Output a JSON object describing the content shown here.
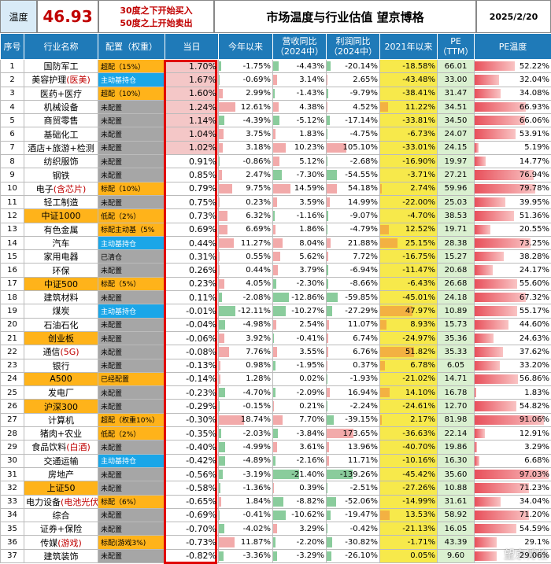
{
  "header": {
    "temp_label": "温度",
    "temp_value": "46.93",
    "rule1": "30度之下开始买入",
    "rule2": "50度之上开始卖出",
    "title": "市场温度与行业估值 望京博格",
    "date": "2025/2/20"
  },
  "columns": [
    "序号",
    "行业名称",
    "配置（权重）",
    "当日",
    "今年以来",
    "营收同比（2024中）",
    "利润同比（2024中）",
    "2021年以来",
    "PE（TTM）",
    "PE温度"
  ],
  "colors": {
    "orange": "#ffb31a",
    "blue": "#1aa6e8",
    "gray": "#a6a6a6",
    "yellow": "#f7e94b",
    "red": "#c00000",
    "green": "#007a33"
  },
  "rows": [
    {
      "n": "1",
      "name": "国防军工",
      "nameH": "",
      "cfg": "超配（15%）",
      "cc": "orange",
      "day": "1.70%",
      "ytd": "-1.75%",
      "rev": "-4.43%",
      "prof": "-20.14%",
      "s21": "-18.58%",
      "pe": "66.01",
      "pt": "52.22%"
    },
    {
      "n": "2",
      "name": "美容护理",
      "nameH": "(医美)",
      "cfg": "主动基持仓",
      "cc": "blue",
      "day": "1.67%",
      "ytd": "-0.69%",
      "rev": "3.14%",
      "prof": "2.65%",
      "s21": "-43.48%",
      "pe": "33.00",
      "pt": "32.04%"
    },
    {
      "n": "3",
      "name": "医药+医疗",
      "nameH": "",
      "cfg": "超配（10%）",
      "cc": "orange",
      "day": "1.60%",
      "ytd": "2.99%",
      "rev": "-1.43%",
      "prof": "-9.79%",
      "s21": "-38.41%",
      "pe": "31.47",
      "pt": "34.08%"
    },
    {
      "n": "4",
      "name": "机械设备",
      "nameH": "",
      "cfg": "未配置",
      "cc": "gray",
      "day": "1.24%",
      "ytd": "12.61%",
      "rev": "4.38%",
      "prof": "4.52%",
      "s21": "11.22%",
      "pe": "34.51",
      "pt": "66.93%"
    },
    {
      "n": "5",
      "name": "商贸零售",
      "nameH": "",
      "cfg": "未配置",
      "cc": "gray",
      "day": "1.14%",
      "ytd": "-4.39%",
      "rev": "-5.12%",
      "prof": "-17.14%",
      "s21": "-33.81%",
      "pe": "34.50",
      "pt": "66.06%"
    },
    {
      "n": "6",
      "name": "基础化工",
      "nameH": "",
      "cfg": "未配置",
      "cc": "gray",
      "day": "1.04%",
      "ytd": "3.75%",
      "rev": "1.83%",
      "prof": "-4.75%",
      "s21": "-6.73%",
      "pe": "24.07",
      "pt": "53.91%"
    },
    {
      "n": "7",
      "name": "酒店+旅游+检测",
      "nameH": "",
      "cfg": "未配置",
      "cc": "gray",
      "day": "1.02%",
      "ytd": "3.18%",
      "rev": "10.23%",
      "prof": "105.10%",
      "s21": "-33.01%",
      "pe": "24.15",
      "pt": "5.19%"
    },
    {
      "n": "8",
      "name": "纺织服饰",
      "nameH": "",
      "cfg": "未配置",
      "cc": "gray",
      "day": "0.91%",
      "ytd": "-0.86%",
      "rev": "5.12%",
      "prof": "-2.68%",
      "s21": "-16.90%",
      "pe": "19.97",
      "pt": "14.77%"
    },
    {
      "n": "9",
      "name": "钢铁",
      "nameH": "",
      "cfg": "未配置",
      "cc": "gray",
      "day": "0.85%",
      "ytd": "2.47%",
      "rev": "-7.30%",
      "prof": "-54.55%",
      "s21": "-3.71%",
      "pe": "27.21",
      "pt": "76.94%"
    },
    {
      "n": "10",
      "name": "电子",
      "nameH": "(含芯片)",
      "cfg": "标配（10%）",
      "cc": "orange",
      "day": "0.79%",
      "ytd": "9.75%",
      "rev": "14.59%",
      "prof": "54.18%",
      "s21": "2.74%",
      "pe": "59.96",
      "pt": "79.78%"
    },
    {
      "n": "11",
      "name": "轻工制造",
      "nameH": "",
      "cfg": "未配置",
      "cc": "gray",
      "day": "0.75%",
      "ytd": "0.23%",
      "rev": "3.59%",
      "prof": "14.99%",
      "s21": "-22.00%",
      "pe": "25.03",
      "pt": "39.95%"
    },
    {
      "n": "12",
      "name": "中证1000",
      "nameH": "",
      "cfg": "低配（2%）",
      "cc": "orange",
      "day": "0.73%",
      "ytd": "6.32%",
      "rev": "-1.16%",
      "prof": "-9.07%",
      "s21": "-4.70%",
      "pe": "38.53",
      "pt": "51.36%"
    },
    {
      "n": "13",
      "name": "有色金属",
      "nameH": "",
      "cfg": "标配主动基（5%",
      "cc": "orange",
      "day": "0.69%",
      "ytd": "6.69%",
      "rev": "1.86%",
      "prof": "-4.79%",
      "s21": "12.52%",
      "pe": "19.71",
      "pt": "20.55%"
    },
    {
      "n": "14",
      "name": "汽车",
      "nameH": "",
      "cfg": "主动基持仓",
      "cc": "blue",
      "day": "0.44%",
      "ytd": "11.27%",
      "rev": "8.04%",
      "prof": "21.88%",
      "s21": "25.15%",
      "pe": "28.38",
      "pt": "73.25%"
    },
    {
      "n": "15",
      "name": "家用电器",
      "nameH": "",
      "cfg": "已清仓",
      "cc": "gray",
      "day": "0.31%",
      "ytd": "0.55%",
      "rev": "5.62%",
      "prof": "7.72%",
      "s21": "-16.75%",
      "pe": "15.27",
      "pt": "38.28%"
    },
    {
      "n": "16",
      "name": "环保",
      "nameH": "",
      "cfg": "未配置",
      "cc": "gray",
      "day": "0.26%",
      "ytd": "0.44%",
      "rev": "3.79%",
      "prof": "-6.94%",
      "s21": "-11.47%",
      "pe": "20.68",
      "pt": "24.17%"
    },
    {
      "n": "17",
      "name": "中证500",
      "nameH": "",
      "cfg": "标配（5%）",
      "cc": "orange",
      "day": "0.23%",
      "ytd": "4.05%",
      "rev": "-2.30%",
      "prof": "-8.66%",
      "s21": "-6.43%",
      "pe": "26.68",
      "pt": "55.60%"
    },
    {
      "n": "18",
      "name": "建筑材料",
      "nameH": "",
      "cfg": "未配置",
      "cc": "gray",
      "day": "0.11%",
      "ytd": "-2.08%",
      "rev": "-12.86%",
      "prof": "-59.85%",
      "s21": "-45.01%",
      "pe": "24.18",
      "pt": "67.32%"
    },
    {
      "n": "19",
      "name": "煤炭",
      "nameH": "",
      "cfg": "主动基持仓",
      "cc": "blue",
      "day": "-0.01%",
      "ytd": "-12.11%",
      "rev": "-10.27%",
      "prof": "-27.29%",
      "s21": "47.97%",
      "pe": "10.89",
      "pt": "55.17%"
    },
    {
      "n": "20",
      "name": "石油石化",
      "nameH": "",
      "cfg": "未配置",
      "cc": "gray",
      "day": "-0.04%",
      "ytd": "-4.98%",
      "rev": "2.54%",
      "prof": "11.07%",
      "s21": "8.93%",
      "pe": "15.73",
      "pt": "44.60%"
    },
    {
      "n": "21",
      "name": "创业板",
      "nameH": "",
      "cfg": "未配置",
      "cc": "gray",
      "day": "-0.06%",
      "ytd": "3.92%",
      "rev": "-0.41%",
      "prof": "6.74%",
      "s21": "-24.97%",
      "pe": "35.36",
      "pt": "24.63%"
    },
    {
      "n": "22",
      "name": "通信",
      "nameH": "(5G)",
      "cfg": "未配置",
      "cc": "gray",
      "day": "-0.08%",
      "ytd": "7.76%",
      "rev": "3.55%",
      "prof": "6.76%",
      "s21": "51.82%",
      "pe": "35.33",
      "pt": "37.62%"
    },
    {
      "n": "23",
      "name": "银行",
      "nameH": "",
      "cfg": "未配置",
      "cc": "gray",
      "day": "-0.13%",
      "ytd": "0.98%",
      "rev": "-1.95%",
      "prof": "0.37%",
      "s21": "6.78%",
      "pe": "6.05",
      "pt": "33.20%"
    },
    {
      "n": "24",
      "name": "A500",
      "nameH": "",
      "cfg": "已经配置",
      "cc": "orange",
      "day": "-0.14%",
      "ytd": "1.28%",
      "rev": "0.02%",
      "prof": "-1.93%",
      "s21": "-21.02%",
      "pe": "14.71",
      "pt": "56.86%"
    },
    {
      "n": "25",
      "name": "发电厂",
      "nameH": "",
      "cfg": "未配置",
      "cc": "gray",
      "day": "-0.23%",
      "ytd": "-4.70%",
      "rev": "-2.09%",
      "prof": "16.94%",
      "s21": "14.10%",
      "pe": "16.78",
      "pt": "1.83%"
    },
    {
      "n": "26",
      "name": "沪深300",
      "nameH": "",
      "cfg": "未配置",
      "cc": "gray",
      "day": "-0.29%",
      "ytd": "-0.15%",
      "rev": "0.21%",
      "prof": "-2.24%",
      "s21": "-24.61%",
      "pe": "12.70",
      "pt": "54.82%"
    },
    {
      "n": "27",
      "name": "计算机",
      "nameH": "",
      "cfg": "超配（权重10%）",
      "cc": "orange",
      "day": "-0.30%",
      "ytd": "18.74%",
      "rev": "7.70%",
      "prof": "-39.15%",
      "s21": "2.17%",
      "pe": "81.98",
      "pt": "91.06%"
    },
    {
      "n": "28",
      "name": "猪肉+农业",
      "nameH": "",
      "cfg": "低配（2%）",
      "cc": "orange",
      "day": "-0.35%",
      "ytd": "-2.03%",
      "rev": "-3.84%",
      "prof": "173.65%",
      "s21": "-36.63%",
      "pe": "22.14",
      "pt": "12.91%"
    },
    {
      "n": "29",
      "name": "食品饮料",
      "nameH": "(白酒)",
      "cfg": "未配置",
      "cc": "gray",
      "day": "-0.40%",
      "ytd": "-4.99%",
      "rev": "3.61%",
      "prof": "13.96%",
      "s21": "-40.70%",
      "pe": "19.86",
      "pt": "3.29%"
    },
    {
      "n": "30",
      "name": "交通运输",
      "nameH": "",
      "cfg": "主动基持仓",
      "cc": "blue",
      "day": "-0.42%",
      "ytd": "-4.89%",
      "rev": "-2.16%",
      "prof": "11.71%",
      "s21": "-10.16%",
      "pe": "16.30",
      "pt": "6.68%"
    },
    {
      "n": "31",
      "name": "房地产",
      "nameH": "",
      "cfg": "未配置",
      "cc": "gray",
      "day": "-0.56%",
      "ytd": "-3.19%",
      "rev": "-21.40%",
      "prof": "-139.26%",
      "s21": "-45.42%",
      "pe": "35.60",
      "pt": "97.03%"
    },
    {
      "n": "32",
      "name": "上证50",
      "nameH": "",
      "cfg": "未配置",
      "cc": "gray",
      "day": "-0.58%",
      "ytd": "-1.36%",
      "rev": "0.39%",
      "prof": "-2.51%",
      "s21": "-27.26%",
      "pe": "10.88",
      "pt": "71.23%"
    },
    {
      "n": "33",
      "name": "电力设备",
      "nameH": "(电池光伏)",
      "cfg": "标配（6%）",
      "cc": "orange",
      "day": "-0.65%",
      "ytd": "1.84%",
      "rev": "-8.82%",
      "prof": "-52.06%",
      "s21": "-14.99%",
      "pe": "31.61",
      "pt": "34.04%"
    },
    {
      "n": "34",
      "name": "综合",
      "nameH": "",
      "cfg": "未配置",
      "cc": "gray",
      "day": "-0.69%",
      "ytd": "-0.41%",
      "rev": "-10.62%",
      "prof": "-19.47%",
      "s21": "13.53%",
      "pe": "58.92",
      "pt": "71.20%"
    },
    {
      "n": "35",
      "name": "证券+保险",
      "nameH": "",
      "cfg": "未配置",
      "cc": "gray",
      "day": "-0.70%",
      "ytd": "-4.02%",
      "rev": "3.29%",
      "prof": "-0.42%",
      "s21": "-21.13%",
      "pe": "16.05",
      "pt": "54.59%"
    },
    {
      "n": "36",
      "name": "传媒",
      "nameH": "(游戏)",
      "cfg": "标配(游戏3%)",
      "cc": "orange",
      "day": "-0.73%",
      "ytd": "11.87%",
      "rev": "-2.20%",
      "prof": "-30.82%",
      "s21": "-1.71%",
      "pe": "43.39",
      "pt": "29.1%"
    },
    {
      "n": "37",
      "name": "建筑装饰",
      "nameH": "",
      "cfg": "未配置",
      "cc": "gray",
      "day": "-0.82%",
      "ytd": "-3.36%",
      "rev": "-3.29%",
      "prof": "-26.10%",
      "s21": "0.05%",
      "pe": "9.60",
      "pt": "29.06%"
    }
  ],
  "watermark": "望京博格"
}
